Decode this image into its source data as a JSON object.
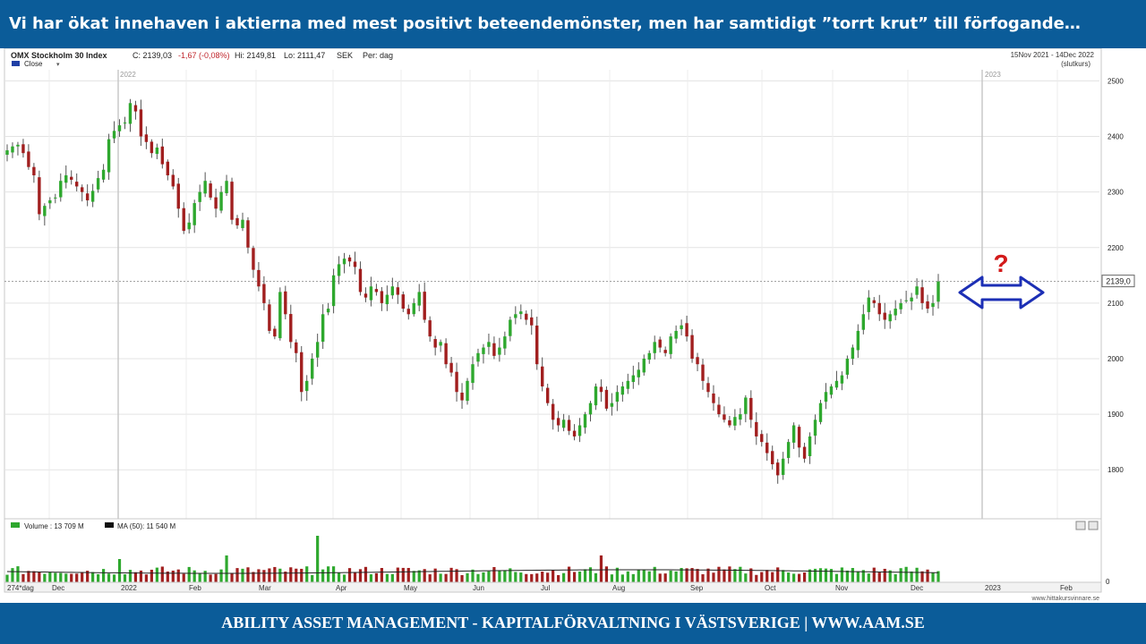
{
  "header": {
    "title": "Vi har ökat innehaven i aktierna med mest positivt beteendemönster, men har samtidigt ”torrt krut” till förfogande…"
  },
  "footer": {
    "text": "ABILITY ASSET MANAGEMENT -  KAPITALFÖRVALTNING I VÄSTSVERIGE   |   WWW.AAM.SE"
  },
  "colors": {
    "brand_blue": "#0b5c99",
    "up": "#2ea82e",
    "down": "#a11f1f",
    "arrow": "#1c2fb5",
    "question": "#d31a1a"
  },
  "annotation": {
    "question": "?"
  },
  "chart_data": {
    "type": "candlestick",
    "instrument": "OMX Stockholm 30 Index",
    "quote": {
      "close": "C: 2139,03",
      "change": "-1,67 (-0,08%)",
      "high": "Hi: 2149,81",
      "low": "Lo: 2111,47",
      "currency": "SEK",
      "period": "Per: dag"
    },
    "date_range": "15Nov 2021 - 14Dec 2022",
    "price_type": "(slutkurs)",
    "legend": [
      {
        "name": "Close",
        "color": "#1f3fa5"
      }
    ],
    "year_labels": [
      "2022",
      "2023"
    ],
    "last_value_label": "2139,0",
    "last_value": 2139.03,
    "ylim": [
      1715,
      2520
    ],
    "yticks": [
      1800,
      1900,
      2000,
      2100,
      2200,
      2300,
      2400,
      2500
    ],
    "grid": true,
    "closes": [
      2375,
      2382,
      2385,
      2370,
      2345,
      2330,
      2260,
      2275,
      2285,
      2290,
      2320,
      2330,
      2322,
      2310,
      2300,
      2285,
      2302,
      2325,
      2340,
      2395,
      2410,
      2420,
      2425,
      2460,
      2445,
      2400,
      2390,
      2370,
      2380,
      2350,
      2330,
      2310,
      2270,
      2230,
      2245,
      2280,
      2300,
      2320,
      2290,
      2270,
      2300,
      2320,
      2250,
      2240,
      2250,
      2200,
      2160,
      2130,
      2100,
      2050,
      2040,
      2120,
      2080,
      2030,
      2010,
      1940,
      1960,
      2000,
      2030,
      2080,
      2090,
      2150,
      2170,
      2180,
      2175,
      2165,
      2120,
      2110,
      2130,
      2120,
      2100,
      2115,
      2130,
      2115,
      2090,
      2080,
      2100,
      2120,
      2070,
      2040,
      2020,
      2030,
      1990,
      1975,
      1940,
      1925,
      1960,
      1990,
      2010,
      2020,
      2030,
      2005,
      2020,
      2040,
      2070,
      2080,
      2085,
      2070,
      2060,
      1990,
      1950,
      1920,
      1890,
      1880,
      1890,
      1870,
      1860,
      1880,
      1900,
      1920,
      1950,
      1940,
      1910,
      1920,
      1940,
      1950,
      1960,
      1970,
      1980,
      2000,
      2010,
      2030,
      2020,
      2010,
      2040,
      2050,
      2060,
      2040,
      2000,
      1990,
      1960,
      1940,
      1920,
      1900,
      1890,
      1880,
      1895,
      1900,
      1930,
      1890,
      1860,
      1850,
      1830,
      1810,
      1790,
      1820,
      1850,
      1880,
      1840,
      1820,
      1860,
      1890,
      1920,
      1940,
      1950,
      1960,
      1970,
      2000,
      2020,
      2050,
      2080,
      2110,
      2100,
      2080,
      2070,
      2080,
      2090,
      2100,
      2105,
      2110,
      2130,
      2100,
      2090,
      2100,
      2139
    ],
    "volume": {
      "legend": [
        {
          "name": "Volume : 13 709 M",
          "color": "#2ea82e"
        },
        {
          "name": "MA (50): 11 540 M",
          "color": "#111111"
        }
      ],
      "zero_label": "0",
      "days_label": "274*dag",
      "x_labels": [
        "Dec",
        "2022",
        "Feb",
        "Mar",
        "Apr",
        "May",
        "Jun",
        "Jul",
        "Aug",
        "Sep",
        "Oct",
        "Nov",
        "Dec",
        "2023",
        "Feb"
      ]
    },
    "source": "www.hittakursvinnare.se"
  }
}
